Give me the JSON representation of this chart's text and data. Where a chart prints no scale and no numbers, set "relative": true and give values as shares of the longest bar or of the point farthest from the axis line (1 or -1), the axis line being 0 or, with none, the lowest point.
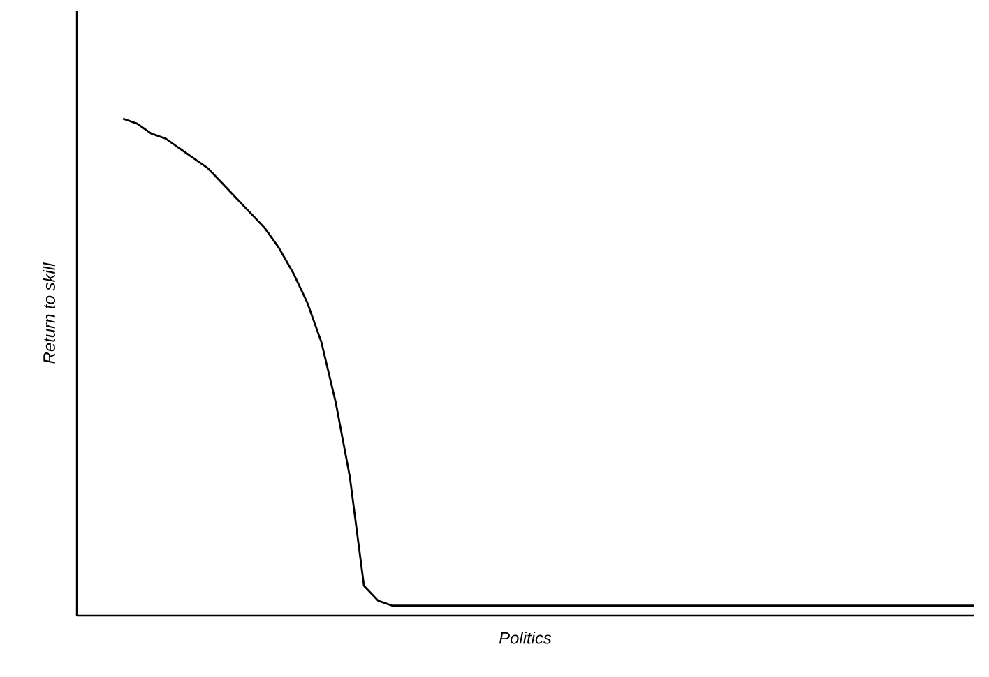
{
  "chart_data": {
    "type": "line",
    "relative": true,
    "xlabel": "Politics",
    "ylabel": "Return to skill",
    "color": "#000000",
    "categories": [
      null,
      null,
      null,
      null,
      null,
      null,
      null,
      null,
      null,
      null,
      null,
      null,
      null,
      null,
      null,
      null,
      null,
      null,
      null,
      null,
      null,
      null,
      null,
      null,
      null,
      null,
      null,
      null,
      null,
      null,
      null,
      null,
      null,
      null,
      null,
      null,
      null,
      null,
      null,
      null,
      null,
      null,
      null,
      null,
      null,
      null,
      null,
      null,
      null,
      null,
      null,
      null,
      null,
      null,
      null,
      null,
      null,
      null,
      null,
      null,
      null
    ],
    "values": [
      1.0,
      0.99,
      0.97,
      0.96,
      0.94,
      0.92,
      0.9,
      0.87,
      0.84,
      0.81,
      0.78,
      0.74,
      0.69,
      0.63,
      0.55,
      0.43,
      0.28,
      0.06,
      0.03,
      0.02,
      0.02,
      0.02,
      0.02,
      0.02,
      0.02,
      0.02,
      0.02,
      0.02,
      0.02,
      0.02,
      0.02,
      0.02,
      0.02,
      0.02,
      0.02,
      0.02,
      0.02,
      0.02,
      0.02,
      0.02,
      0.02,
      0.02,
      0.02,
      0.02,
      0.02,
      0.02,
      0.02,
      0.02,
      0.02,
      0.02,
      0.02,
      0.02,
      0.02,
      0.02,
      0.02,
      0.02,
      0.02,
      0.02,
      0.02,
      0.02,
      0.02
    ]
  }
}
